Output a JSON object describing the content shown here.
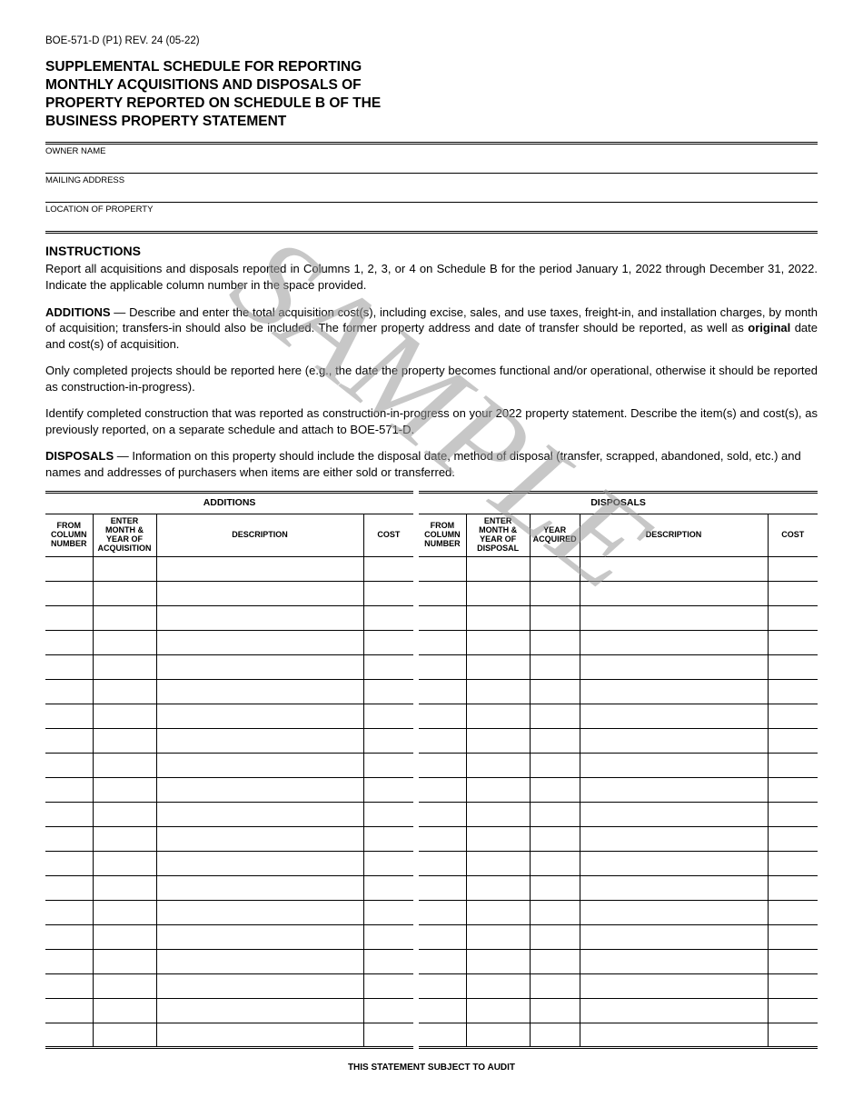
{
  "form_code": "BOE-571-D (P1) REV. 24 (05-22)",
  "title_lines": [
    "SUPPLEMENTAL SCHEDULE FOR REPORTING",
    "MONTHLY ACQUISITIONS AND DISPOSALS OF",
    "PROPERTY REPORTED ON SCHEDULE B OF THE",
    "BUSINESS PROPERTY STATEMENT"
  ],
  "fields": {
    "owner": "OWNER NAME",
    "mailing": "MAILING ADDRESS",
    "location": "LOCATION OF PROPERTY"
  },
  "instructions": {
    "heading": "INSTRUCTIONS",
    "p1": "Report all acquisitions and disposals reported in Columns 1, 2, 3, or 4 on Schedule B for the period January 1, 2022 through December 31, 2022. Indicate the applicable column number in the space provided.",
    "p2_lead": "ADDITIONS",
    "p2": " — Describe and enter the total acquisition cost(s), including excise, sales, and use taxes, freight-in, and installation charges, by month of acquisition; transfers-in should also be included. The former property address and date of transfer should be reported, as well as ",
    "p2_bold2": "original",
    "p2_tail": " date and cost(s) of acquisition.",
    "p3": "Only completed projects should be reported here (e.g., the date the property becomes functional and/or operational, otherwise it should be reported as construction-in-progress).",
    "p4": "Identify completed construction that was reported as construction-in-progress on your 2022 property statement. Describe the item(s) and cost(s), as previously reported, on a separate schedule and attach to BOE-571-D.",
    "p5_lead": "DISPOSALS",
    "p5": " — Information on this property should include the disposal date, method of disposal (transfer, scrapped, abandoned, sold, etc.) and names and addresses of purchasers when items are either sold or transferred."
  },
  "table": {
    "additions_title": "ADDITIONS",
    "disposals_title": "DISPOSALS",
    "additions_cols": [
      "FROM COLUMN NUMBER",
      "ENTER MONTH & YEAR OF ACQUISITION",
      "DESCRIPTION",
      "COST"
    ],
    "disposals_cols": [
      "FROM COLUMN NUMBER",
      "ENTER MONTH & YEAR OF DISPOSAL",
      "YEAR ACQUIRED",
      "DESCRIPTION",
      "COST"
    ],
    "row_count": 20
  },
  "audit_note": "THIS STATEMENT SUBJECT TO AUDIT",
  "watermark": "SAMPLE"
}
